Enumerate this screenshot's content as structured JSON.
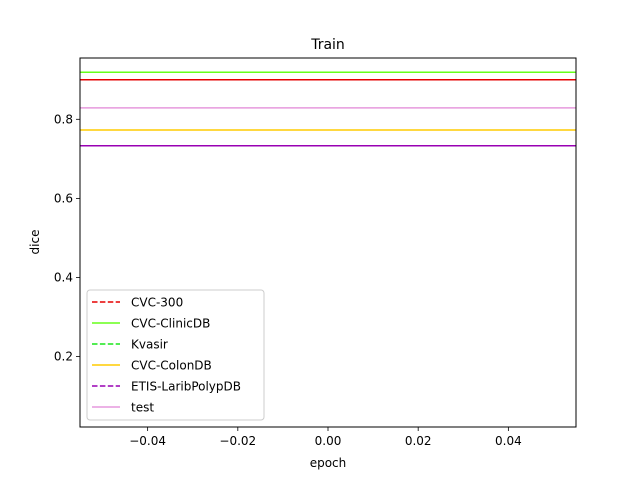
{
  "chart_data": {
    "type": "line",
    "title": "Train",
    "xlabel": "epoch",
    "ylabel": "dice",
    "xlim": [
      -0.055,
      0.055
    ],
    "ylim": [
      0.022,
      0.955
    ],
    "xticks": [
      -0.04,
      -0.02,
      0.0,
      0.02,
      0.04
    ],
    "xtick_labels": [
      "−0.04",
      "−0.02",
      "0.00",
      "0.02",
      "0.04"
    ],
    "yticks": [
      0.2,
      0.4,
      0.6,
      0.8
    ],
    "ytick_labels": [
      "0.2",
      "0.4",
      "0.6",
      "0.8"
    ],
    "grid": false,
    "legend_position": "lower-left",
    "x": [
      -0.055,
      0.055
    ],
    "series": [
      {
        "name": "CVC-300",
        "values": [
          0.9,
          0.9
        ],
        "color": "#e60000",
        "linestyle": "dashed",
        "drawn": "solid"
      },
      {
        "name": "CVC-ClinicDB",
        "values": [
          0.919,
          0.919
        ],
        "color": "#66ff1a",
        "linestyle": "solid",
        "drawn": "solid"
      },
      {
        "name": "Kvasir",
        "values": [
          0.919,
          0.919
        ],
        "color": "#1ae61a",
        "linestyle": "dashed",
        "drawn": "none"
      },
      {
        "name": "CVC-ColonDB",
        "values": [
          0.773,
          0.773
        ],
        "color": "#ffcc00",
        "linestyle": "solid",
        "drawn": "solid"
      },
      {
        "name": "ETIS-LaribPolypDB",
        "values": [
          0.733,
          0.733
        ],
        "color": "#9900b3",
        "linestyle": "dashed",
        "drawn": "solid"
      },
      {
        "name": "test",
        "values": [
          0.829,
          0.829
        ],
        "color": "#e699dd",
        "linestyle": "solid",
        "drawn": "solid"
      }
    ]
  }
}
